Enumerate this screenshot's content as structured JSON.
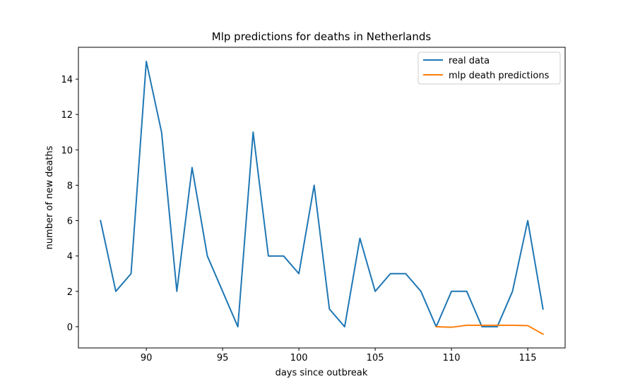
{
  "chart_data": {
    "type": "line",
    "title": "Mlp predictions for deaths in  Netherlands",
    "xlabel": "days since outbreak",
    "ylabel": "number of new deaths",
    "xlim": [
      85.55,
      117.45
    ],
    "ylim": [
      -1.2,
      15.8
    ],
    "xticks": [
      90,
      95,
      100,
      105,
      110,
      115
    ],
    "yticks": [
      0,
      2,
      4,
      6,
      8,
      10,
      12,
      14
    ],
    "grid": false,
    "legend_position": "top-right",
    "series": [
      {
        "name": "real data",
        "color": "#1f77b4",
        "x": [
          87,
          88,
          89,
          90,
          91,
          92,
          93,
          94,
          95,
          96,
          97,
          98,
          99,
          100,
          101,
          102,
          103,
          104,
          105,
          106,
          107,
          108,
          109,
          110,
          111,
          112,
          113,
          114,
          115,
          116
        ],
        "y": [
          6,
          2,
          3,
          15,
          11,
          2,
          9,
          4,
          2,
          0,
          11,
          4,
          4,
          3,
          8,
          1,
          0,
          5,
          2,
          3,
          3,
          2,
          0,
          2,
          2,
          0,
          0,
          2,
          6,
          1
        ]
      },
      {
        "name": "mlp death predictions",
        "color": "#ff7f0e",
        "x": [
          109,
          110,
          111,
          112,
          113,
          114,
          115,
          116
        ],
        "y": [
          0.0,
          -0.03,
          0.08,
          0.08,
          0.08,
          0.08,
          0.06,
          -0.42
        ]
      }
    ]
  }
}
